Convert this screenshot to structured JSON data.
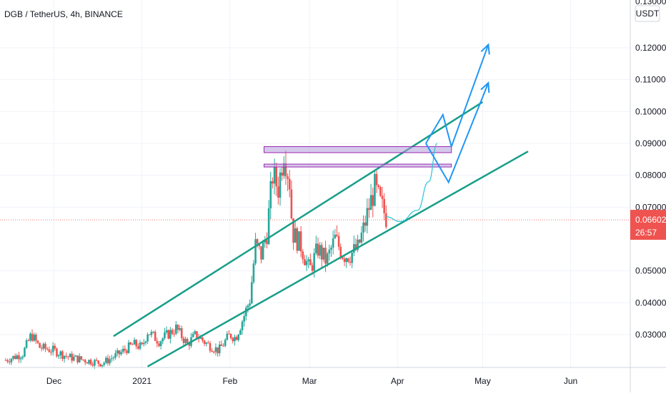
{
  "chart_data": {
    "type": "candlestick",
    "title": "DGB / TetherUS, 4h, BINANCE",
    "currency_label": "USDT",
    "y_top_label": "0.13000",
    "ylim": [
      0.0197,
      0.135
    ],
    "y_ticks": [
      "0.12000",
      "0.11000",
      "0.10000",
      "0.09000",
      "0.08000",
      "0.07000",
      "0.05000",
      "0.04000",
      "0.03000"
    ],
    "x_ticks": [
      "Dec",
      "2021",
      "Feb",
      "Mar",
      "Apr",
      "May",
      "Jun"
    ],
    "xlim": [
      "2020-11-12",
      "2021-06-22"
    ],
    "current_price": {
      "label": "0.06602",
      "countdown": "26:57",
      "value": 0.06602
    },
    "price_series": {
      "color_up": "#26a69a",
      "color_down": "#ef5350",
      "points": [
        [
          "2020-11-14",
          0.022
        ],
        [
          "2020-11-20",
          0.024
        ],
        [
          "2020-11-23",
          0.03
        ],
        [
          "2020-11-26",
          0.026
        ],
        [
          "2020-12-01",
          0.025
        ],
        [
          "2020-12-06",
          0.023
        ],
        [
          "2020-12-12",
          0.022
        ],
        [
          "2020-12-18",
          0.021
        ],
        [
          "2020-12-24",
          0.024
        ],
        [
          "2020-12-29",
          0.027
        ],
        [
          "2021-01-01",
          0.026
        ],
        [
          "2021-01-03",
          0.031
        ],
        [
          "2021-01-07",
          0.028
        ],
        [
          "2021-01-10",
          0.03
        ],
        [
          "2021-01-13",
          0.032
        ],
        [
          "2021-01-17",
          0.027
        ],
        [
          "2021-01-20",
          0.03
        ],
        [
          "2021-01-24",
          0.027
        ],
        [
          "2021-01-28",
          0.025
        ],
        [
          "2021-02-01",
          0.03
        ],
        [
          "2021-02-03",
          0.029
        ],
        [
          "2021-02-06",
          0.036
        ],
        [
          "2021-02-08",
          0.041
        ],
        [
          "2021-02-10",
          0.058
        ],
        [
          "2021-02-12",
          0.055
        ],
        [
          "2021-02-14",
          0.062
        ],
        [
          "2021-02-16",
          0.08
        ],
        [
          "2021-02-18",
          0.076
        ],
        [
          "2021-02-20",
          0.088
        ],
        [
          "2021-02-22",
          0.078
        ],
        [
          "2021-02-23",
          0.062
        ],
        [
          "2021-02-26",
          0.058
        ],
        [
          "2021-03-01",
          0.05
        ],
        [
          "2021-03-04",
          0.057
        ],
        [
          "2021-03-07",
          0.053
        ],
        [
          "2021-03-10",
          0.06
        ],
        [
          "2021-03-13",
          0.055
        ],
        [
          "2021-03-15",
          0.055
        ],
        [
          "2021-03-18",
          0.057
        ],
        [
          "2021-03-20",
          0.063
        ],
        [
          "2021-03-22",
          0.07
        ],
        [
          "2021-03-24",
          0.076
        ],
        [
          "2021-03-26",
          0.071
        ],
        [
          "2021-03-28",
          0.067
        ]
      ]
    },
    "annotations": {
      "channel_upper": {
        "color": "#179e89",
        "from": [
          "2020-12-22",
          0.0295
        ],
        "to": [
          "2021-05-01",
          0.103
        ]
      },
      "channel_lower": {
        "color": "#179e89",
        "from": [
          "2021-01-03",
          0.02
        ],
        "to": [
          "2021-05-17",
          0.0875
        ]
      },
      "resistance_zones": [
        {
          "color": "#b39ddb",
          "from": "2021-02-13",
          "to": "2021-04-20",
          "y": [
            0.0871,
            0.089
          ]
        },
        {
          "color": "#b39ddb",
          "from": "2021-02-13",
          "to": "2021-04-20",
          "y": [
            0.0826,
            0.0835
          ]
        }
      ],
      "projection_curve": {
        "color": "#26c6da",
        "points": [
          [
            "2021-03-28",
            0.067
          ],
          [
            "2021-04-02",
            0.0655
          ],
          [
            "2021-04-08",
            0.069
          ],
          [
            "2021-04-12",
            0.078
          ],
          [
            "2021-04-15",
            0.09
          ]
        ]
      },
      "arrow_paths": [
        {
          "color": "#2196f3",
          "points": [
            [
              "2021-04-11",
              0.09
            ],
            [
              "2021-04-17",
              0.099
            ],
            [
              "2021-04-20",
              0.089
            ],
            [
              "2021-05-03",
              0.121
            ]
          ]
        },
        {
          "color": "#2196f3",
          "points": [
            [
              "2021-04-11",
              0.09
            ],
            [
              "2021-04-19",
              0.0778
            ],
            [
              "2021-05-03",
              0.109
            ]
          ]
        }
      ]
    }
  }
}
